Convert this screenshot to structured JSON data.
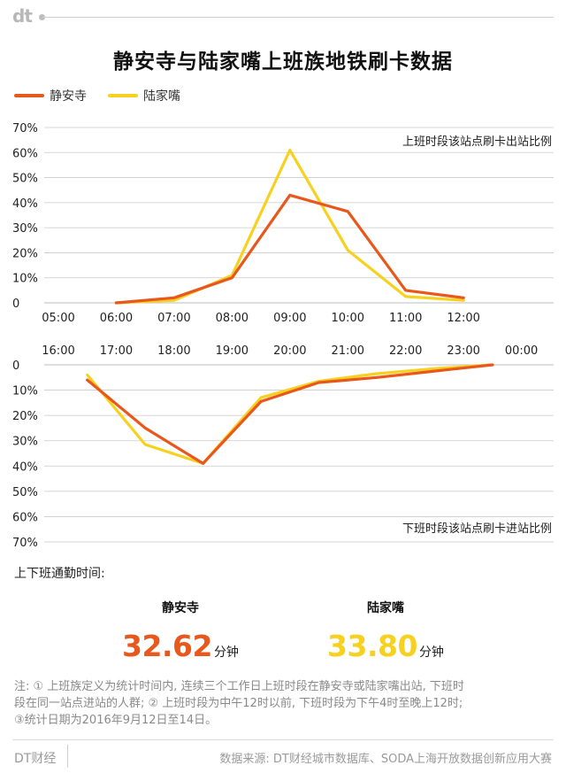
{
  "header": {
    "logo_text": "dt",
    "title": "静安寺与陆家嘴上班族地铁刷卡数据"
  },
  "colors": {
    "jingansi": "#e8571c",
    "lujiazui": "#f7d11f",
    "grid": "#c9c9c9",
    "axis_text": "#222222"
  },
  "chart_data": {
    "type": "line",
    "legend": [
      {
        "name": "静安寺",
        "color": "#e8571c"
      },
      {
        "name": "陆家嘴",
        "color": "#f7d11f"
      }
    ],
    "legend_position": "top-left",
    "top_panel": {
      "label": "上班时段该站点刷卡出站比例",
      "x_ticks": [
        "05:00",
        "06:00",
        "07:00",
        "08:00",
        "09:00",
        "10:00",
        "11:00",
        "12:00"
      ],
      "y_ticks": [
        "70%",
        "60%",
        "50%",
        "40%",
        "30%",
        "20%",
        "10%",
        "0"
      ],
      "ylim": [
        0,
        70
      ],
      "x_positions": [
        6.0,
        7.0,
        8.0,
        9.0,
        10.0,
        11.0,
        12.0
      ],
      "series": [
        {
          "name": "静安寺",
          "values": [
            0,
            2,
            10,
            43,
            36.5,
            5,
            2
          ]
        },
        {
          "name": "陆家嘴",
          "values": [
            0,
            1,
            11,
            61,
            21,
            2.5,
            1
          ]
        }
      ]
    },
    "bottom_panel": {
      "label": "下班时段该站点刷卡进站比例",
      "x_ticks": [
        "16:00",
        "17:00",
        "18:00",
        "19:00",
        "20:00",
        "21:00",
        "22:00",
        "23:00",
        "00:00"
      ],
      "y_ticks": [
        "0",
        "10%",
        "20%",
        "30%",
        "40%",
        "50%",
        "60%",
        "70%"
      ],
      "ylim": [
        0,
        70
      ],
      "inverted": true,
      "x_positions": [
        16.5,
        17.5,
        18.5,
        19.5,
        20.5,
        21.5,
        22.5,
        23.5
      ],
      "series": [
        {
          "name": "静安寺",
          "values": [
            6,
            25,
            39,
            14.5,
            7,
            5,
            2.5,
            0
          ]
        },
        {
          "name": "陆家嘴",
          "values": [
            4,
            31.5,
            39,
            13,
            6.5,
            3.5,
            1.5,
            0
          ]
        }
      ]
    },
    "grid": true
  },
  "commute": {
    "section_title": "上下班通勤时间:",
    "stats": [
      {
        "label": "静安寺",
        "value": "32.62",
        "unit": "分钟",
        "color": "#e8571c"
      },
      {
        "label": "陆家嘴",
        "value": "33.80",
        "unit": "分钟",
        "color": "#f7d11f"
      }
    ]
  },
  "note": {
    "lines": [
      "注: ① 上班族定义为统计时间内, 连续三个工作日上班时段在静安寺或陆家嘴出站, 下班时",
      "段在同一站点进站的人群; ② 上班时段为中午12时以前, 下班时段为下午4时至晚上12时;",
      "③统计日期为2016年9月12日至14日。"
    ]
  },
  "footer": {
    "brand": "DT财经",
    "source": "数据来源: DT财经城市数据库、SODA上海开放数据创新应用大赛"
  }
}
